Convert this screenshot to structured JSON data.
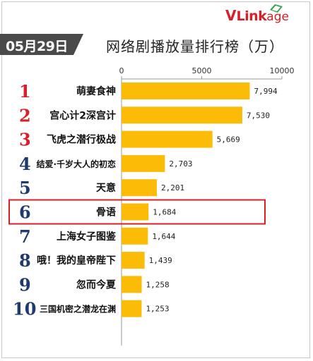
{
  "brand": {
    "v": "V",
    "rest": "Link",
    "tail": "age"
  },
  "date": "05月29日",
  "title": "网络剧播放量排行榜（万）",
  "colors": {
    "bar": "#fcbb06",
    "rank_top": "#d6202a",
    "rank_other": "#1f3a6e",
    "highlight": "#d6202a",
    "badge": "#4a4a4a"
  },
  "chart_data": {
    "type": "bar",
    "orientation": "horizontal",
    "title": "网络剧播放量排行榜（万）",
    "xlim": [
      0,
      10000
    ],
    "xticks": [
      "0",
      "5000",
      "10000"
    ],
    "grid": false,
    "ranks": [
      "1",
      "2",
      "3",
      "4",
      "5",
      "6",
      "7",
      "8",
      "9",
      "10"
    ],
    "categories": [
      "萌妻食神",
      "宫心计2深宫计",
      "飞虎之潜行极战",
      "结爱·千岁大人的初恋",
      "天意",
      "骨语",
      "上海女子图鉴",
      "哦！我的皇帝陛下",
      "忽而今夏",
      "三国机密之潜龙在渊"
    ],
    "values": [
      7994,
      7530,
      5669,
      2703,
      2201,
      1684,
      1644,
      1439,
      1258,
      1253
    ],
    "value_labels": [
      "7,994",
      "7,530",
      "5,669",
      "2,703",
      "2,201",
      "1,684",
      "1,644",
      "1,439",
      "1,258",
      "1,253"
    ],
    "highlighted": "骨语"
  }
}
